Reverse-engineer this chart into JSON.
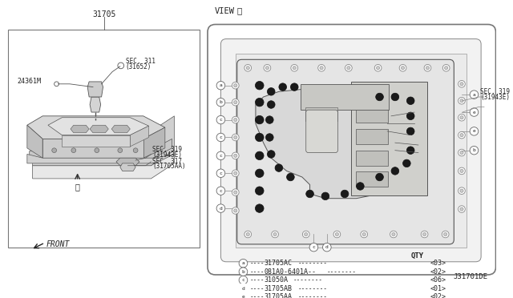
{
  "title": "31705",
  "view_label": "VIEW",
  "circled_A": "Ⓐ",
  "sec_319_label": "SEC. 319",
  "sec_319_paren": "(31943E)",
  "sec_311_label": "SEC. 311",
  "sec_311_paren": "(31652)",
  "sec_319b_label": "SEC. 319",
  "sec_319b_paren": "(31943E)",
  "sec_317_label": "SEC. 317",
  "sec_317_paren": "(31705AA)",
  "part_24361M": "24361M",
  "front_label": "FRONT",
  "diagram_id": "J31701DE",
  "qty_label": "QTY",
  "bg_color": "#ffffff",
  "line_color": "#555555",
  "text_color": "#222222",
  "parts": [
    {
      "letter": "a",
      "part_num": "31705AC",
      "qty": "<03>"
    },
    {
      "letter": "b",
      "part_num": "081A0-6401A--",
      "qty": "<02>"
    },
    {
      "letter": "c",
      "part_num": "31050A",
      "qty": "<06>"
    },
    {
      "letter": "d",
      "part_num": "31705AB",
      "qty": "<01>"
    },
    {
      "letter": "e",
      "part_num": "31705AA",
      "qty": "<02>"
    }
  ]
}
